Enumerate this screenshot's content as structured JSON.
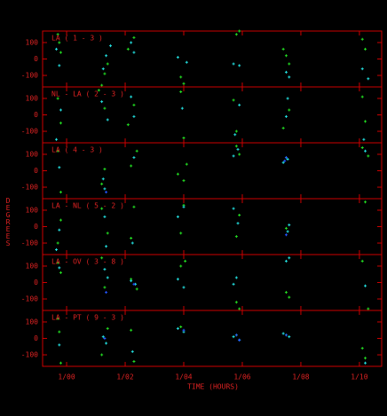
{
  "chart_data": {
    "type": "scatter",
    "xlabel": "TIME (HOURS)",
    "ylabel": "DEGREES",
    "xlim": [
      -0.82,
      10.76
    ],
    "xticks": [
      {
        "value": 0,
        "label": "1/00"
      },
      {
        "value": 2,
        "label": "1/02"
      },
      {
        "value": 4,
        "label": "1/04"
      },
      {
        "value": 6,
        "label": "1/06"
      },
      {
        "value": 8,
        "label": "1/08"
      },
      {
        "value": 10,
        "label": "1/10"
      }
    ],
    "ylim": [
      -170,
      170
    ],
    "yticks": [
      100,
      0,
      -100
    ],
    "panels": [
      {
        "label": "LA ( 1 - 3 )",
        "series": [
          {
            "color": "#22dd22",
            "x": [
              -0.3,
              -0.25,
              -0.2,
              1.2,
              1.3,
              1.4,
              2.1,
              2.3,
              3.9,
              4.0,
              5.8,
              5.9,
              7.4,
              7.5,
              7.6,
              10.1,
              10.2
            ],
            "values": [
              150,
              100,
              40,
              -160,
              -90,
              -30,
              60,
              130,
              -110,
              -150,
              150,
              170,
              60,
              20,
              -30,
              120,
              60
            ]
          },
          {
            "color": "#22dddd",
            "x": [
              -0.35,
              -0.25,
              1.25,
              1.35,
              1.5,
              2.2,
              2.3,
              3.8,
              4.1,
              5.7,
              5.9,
              7.5,
              7.6,
              10.1,
              10.3
            ],
            "values": [
              60,
              -40,
              -60,
              20,
              80,
              100,
              40,
              10,
              -20,
              -30,
              -40,
              -80,
              -110,
              -60,
              -120
            ]
          }
        ]
      },
      {
        "label": "NL - LA ( 2 - 3 )",
        "series": [
          {
            "color": "#22dd22",
            "x": [
              -0.3,
              -0.2,
              1.1,
              1.3,
              2.1,
              2.3,
              3.9,
              4.0,
              5.7,
              5.8,
              7.4,
              7.6,
              10.1,
              10.2
            ],
            "values": [
              100,
              -50,
              150,
              40,
              -60,
              60,
              140,
              -140,
              90,
              -100,
              -80,
              30,
              110,
              -40
            ]
          },
          {
            "color": "#22dddd",
            "x": [
              -0.35,
              -0.2,
              1.2,
              1.4,
              2.2,
              2.3,
              3.95,
              5.75,
              5.9,
              7.5,
              7.55,
              10.15
            ],
            "values": [
              -150,
              30,
              80,
              -30,
              110,
              -10,
              40,
              -120,
              60,
              -10,
              100,
              -150
            ]
          }
        ]
      },
      {
        "label": "LA ( 4 - 3 )",
        "series": [
          {
            "color": "#22dd22",
            "x": [
              -0.3,
              -0.2,
              1.2,
              1.3,
              2.2,
              2.4,
              3.8,
              4.0,
              4.1,
              5.8,
              5.9,
              7.5,
              10.1,
              10.3
            ],
            "values": [
              120,
              -130,
              -80,
              10,
              30,
              120,
              -20,
              -60,
              40,
              150,
              100,
              80,
              140,
              90
            ]
          },
          {
            "color": "#22dddd",
            "x": [
              -0.25,
              1.25,
              1.3,
              2.3,
              5.7,
              5.85,
              7.4,
              7.55,
              10.2
            ],
            "values": [
              20,
              -50,
              -110,
              80,
              90,
              130,
              50,
              70,
              120
            ]
          },
          {
            "color": "#2255ff",
            "x": [
              1.35,
              7.45,
              7.5
            ],
            "values": [
              -130,
              60,
              80
            ]
          }
        ]
      },
      {
        "label": "LA - NL ( 5 - 2 )",
        "series": [
          {
            "color": "#22dd22",
            "x": [
              -0.3,
              -0.2,
              1.2,
              1.4,
              2.2,
              2.3,
              3.9,
              4.0,
              5.8,
              5.9,
              7.5,
              10.2
            ],
            "values": [
              -100,
              40,
              110,
              -40,
              -70,
              120,
              -40,
              130,
              -60,
              70,
              -10,
              150
            ]
          },
          {
            "color": "#22dddd",
            "x": [
              -0.25,
              -0.35,
              1.3,
              1.35,
              2.25,
              3.8,
              4.0,
              5.7,
              5.85,
              7.55,
              7.6
            ],
            "values": [
              -20,
              -140,
              60,
              -120,
              -100,
              60,
              120,
              110,
              20,
              -30,
              10
            ]
          },
          {
            "color": "#2255ff",
            "x": [
              7.5
            ],
            "values": [
              -50
            ]
          }
        ]
      },
      {
        "label": "LA - OV ( 3 - 8 )",
        "series": [
          {
            "color": "#22dd22",
            "x": [
              -0.3,
              -0.2,
              1.2,
              1.3,
              2.2,
              2.4,
              3.9,
              4.05,
              5.8,
              5.9,
              7.5,
              7.6,
              10.1,
              10.3
            ],
            "values": [
              120,
              60,
              150,
              -30,
              20,
              -40,
              100,
              130,
              -120,
              -160,
              -60,
              -90,
              130,
              -160
            ]
          },
          {
            "color": "#22dddd",
            "x": [
              -0.25,
              1.3,
              1.4,
              2.2,
              2.35,
              3.8,
              4.0,
              5.7,
              5.8,
              7.5,
              7.6,
              10.2
            ],
            "values": [
              90,
              80,
              30,
              10,
              -10,
              20,
              -30,
              -10,
              30,
              130,
              150,
              -20
            ]
          },
          {
            "color": "#2255ff",
            "x": [
              1.35,
              2.3
            ],
            "values": [
              -60,
              -10
            ]
          }
        ]
      },
      {
        "label": "LA - PT ( 9 - 3 )",
        "series": [
          {
            "color": "#22dd22",
            "x": [
              -0.3,
              -0.2,
              -0.25,
              1.2,
              1.4,
              2.2,
              2.3,
              3.9,
              5.8,
              7.5,
              10.1,
              10.2
            ],
            "values": [
              120,
              -150,
              40,
              -100,
              60,
              50,
              -140,
              70,
              20,
              20,
              -60,
              -120
            ]
          },
          {
            "color": "#22dddd",
            "x": [
              -0.25,
              1.25,
              1.35,
              2.25,
              3.8,
              4.0,
              5.7,
              5.9,
              7.4,
              7.6,
              10.2
            ],
            "values": [
              -40,
              10,
              -30,
              -80,
              60,
              40,
              10,
              -10,
              30,
              10,
              -150
            ]
          },
          {
            "color": "#2255ff",
            "x": [
              1.3,
              4.0,
              5.8,
              5.9,
              7.5
            ],
            "values": [
              0,
              50,
              20,
              -10,
              20
            ]
          }
        ]
      }
    ]
  }
}
